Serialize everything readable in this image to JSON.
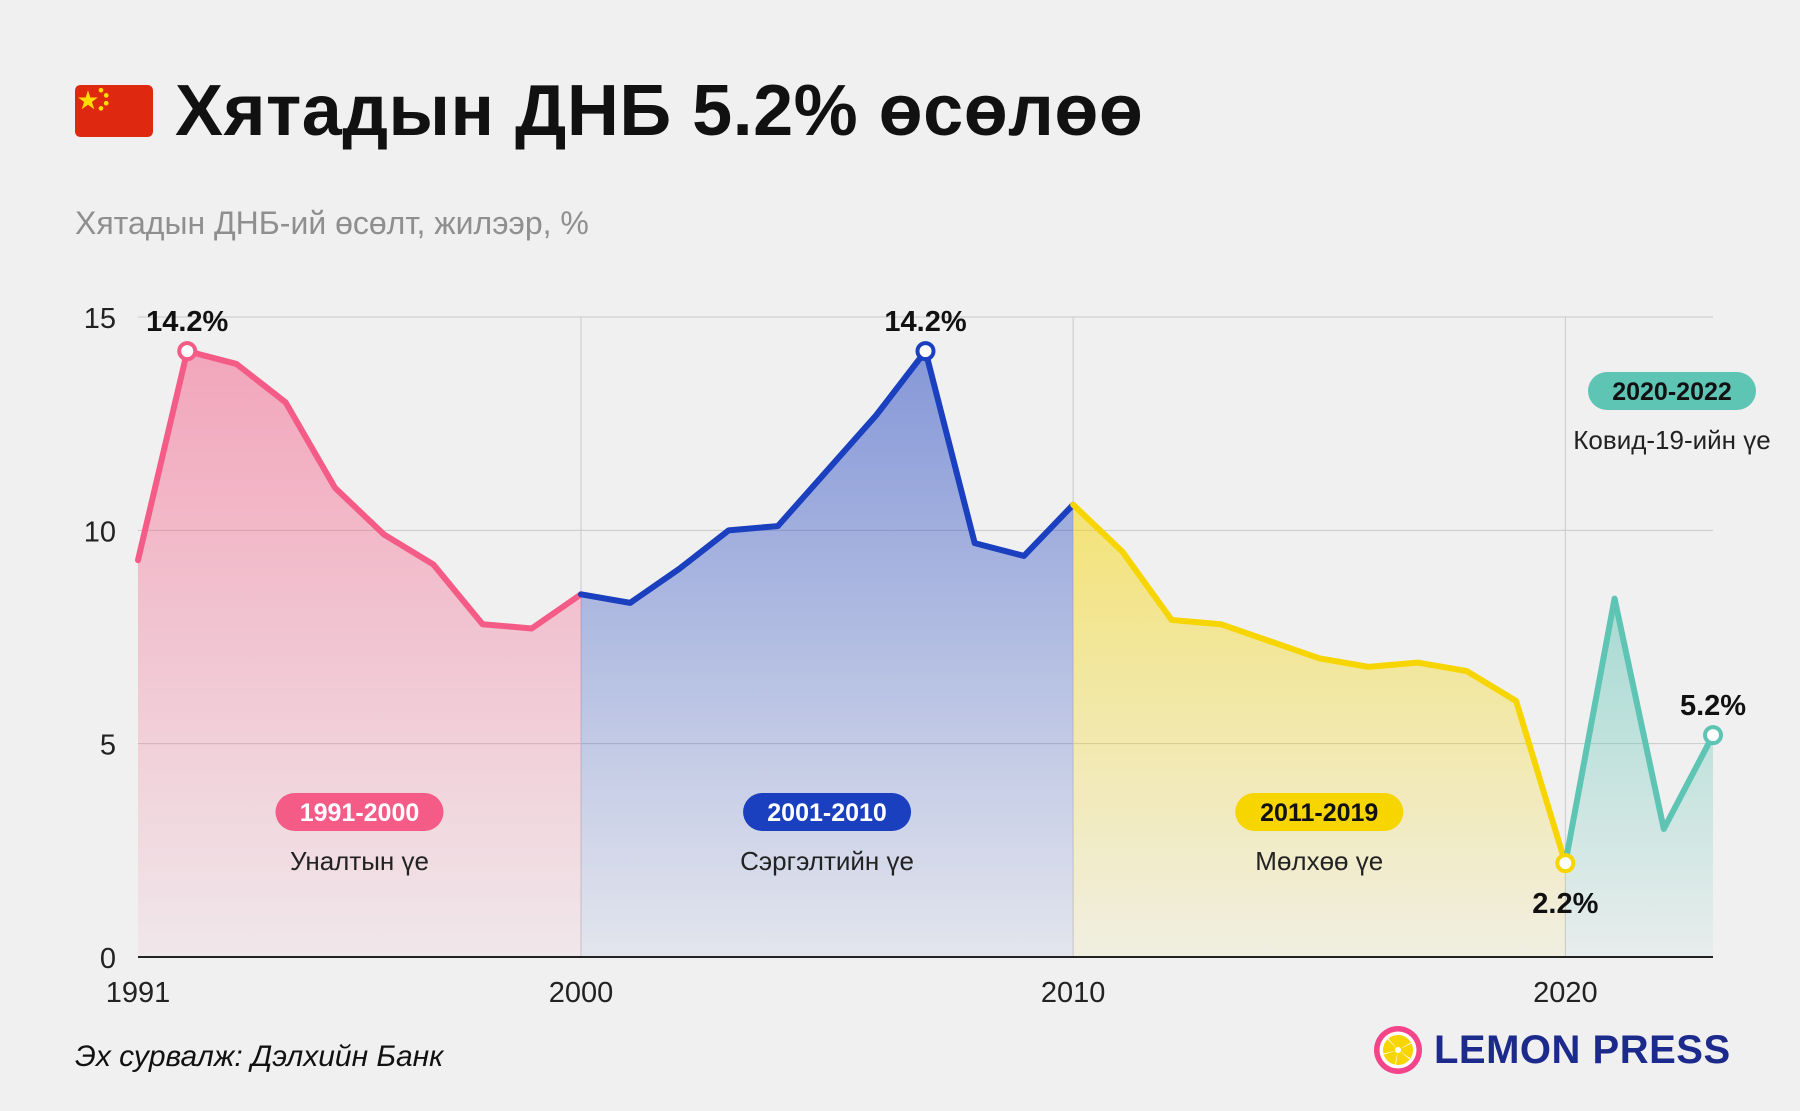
{
  "header": {
    "title": "Хятадын ДНБ 5.2% өсөлөө",
    "subtitle": "Хятадын ДНБ-ий өсөлт, жилээр, %"
  },
  "footer": {
    "source": "Эх сурвалж: Дэлхийн Банк",
    "logo_text": "LEMON PRESS"
  },
  "chart_data": {
    "type": "area",
    "title": "Хятадын ДНБ 5.2% өсөлөө",
    "subtitle": "Хятадын ДНБ-ий өсөлт, жилээр, %",
    "xlabel": "",
    "ylabel": "",
    "xlim": [
      1991,
      2023
    ],
    "ylim": [
      0,
      15
    ],
    "y_ticks": [
      0,
      5,
      10,
      15
    ],
    "x_ticks": [
      1991,
      2000,
      2010,
      2020
    ],
    "grid": true,
    "legend": "none",
    "series": [
      {
        "period": "1991-2000",
        "label": "Уналтын үе",
        "color": "#f45b87",
        "x": [
          1991,
          1992,
          1993,
          1994,
          1995,
          1996,
          1997,
          1998,
          1999,
          2000
        ],
        "values": [
          9.3,
          14.2,
          13.9,
          13.0,
          11.0,
          9.9,
          9.2,
          7.8,
          7.7,
          8.5
        ]
      },
      {
        "period": "2001-2010",
        "label": "Сэргэлтийн үе",
        "color": "#1a3fbf",
        "x": [
          2000,
          2001,
          2002,
          2003,
          2004,
          2005,
          2006,
          2007,
          2008,
          2009,
          2010
        ],
        "values": [
          8.5,
          8.3,
          9.1,
          10.0,
          10.1,
          11.4,
          12.7,
          14.2,
          9.7,
          9.4,
          10.6
        ]
      },
      {
        "period": "2011-2019",
        "label": "Мөлхөө үе",
        "color": "#f7d500",
        "x": [
          2010,
          2011,
          2012,
          2013,
          2014,
          2015,
          2016,
          2017,
          2018,
          2019,
          2020
        ],
        "values": [
          10.6,
          9.5,
          7.9,
          7.8,
          7.4,
          7.0,
          6.8,
          6.9,
          6.7,
          6.0,
          2.2
        ]
      },
      {
        "period": "2020-2022",
        "label": "Ковид-19-ийн үе",
        "color": "#5ec4b4",
        "x": [
          2020,
          2021,
          2022,
          2023
        ],
        "values": [
          2.2,
          8.4,
          3.0,
          5.2
        ]
      }
    ],
    "annotations": [
      {
        "text": "14.2%",
        "x": 1992,
        "y": 14.2,
        "color": "#f45b87",
        "position": "above"
      },
      {
        "text": "14.2%",
        "x": 2007,
        "y": 14.2,
        "color": "#1a3fbf",
        "position": "above"
      },
      {
        "text": "2.2%",
        "x": 2020,
        "y": 2.2,
        "color": "#f7d500",
        "position": "below"
      },
      {
        "text": "5.2%",
        "x": 2023,
        "y": 5.2,
        "color": "#5ec4b4",
        "position": "above"
      }
    ]
  }
}
